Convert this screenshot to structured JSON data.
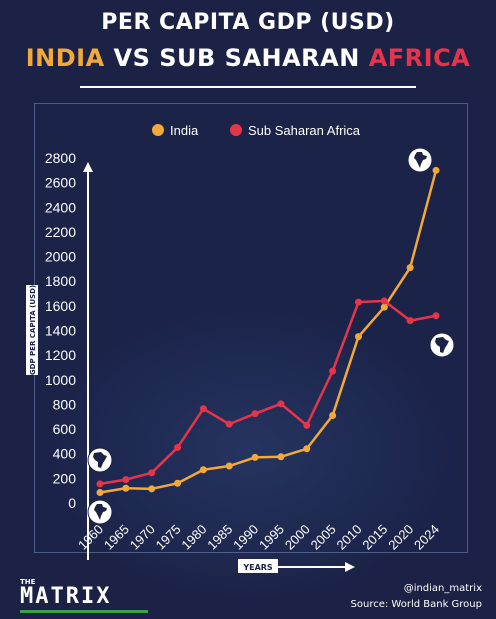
{
  "header": {
    "title_line1": "PER CAPITA GDP (USD)",
    "title_india": "INDIA",
    "title_vs": " VS SUB SAHARAN ",
    "title_africa": "AFRICA"
  },
  "footer": {
    "logo_the": "THE",
    "logo_name": "MATRIX",
    "handle": "@indian_matrix",
    "source": "Source: World Bank Group"
  },
  "colors": {
    "india": "#f3a93a",
    "africa": "#e8344a",
    "background": "#1b2246",
    "axis": "#ffffff"
  },
  "icons": [
    "india-map-icon",
    "africa-map-icon"
  ],
  "chart_data": {
    "type": "line",
    "title": "PER CAPITA GDP (USD)",
    "xlabel": "YEARS",
    "ylabel": "GDP PER CAPITA (USD)",
    "x": [
      "1960",
      "1965",
      "1970",
      "1975",
      "1980",
      "1985",
      "1990",
      "1995",
      "2000",
      "2005",
      "2010",
      "2015",
      "2020",
      "2024"
    ],
    "yticks": [
      0,
      200,
      400,
      600,
      800,
      1000,
      1200,
      1400,
      1600,
      1800,
      2000,
      2200,
      2400,
      2600,
      2800
    ],
    "ylim": [
      0,
      2800
    ],
    "legend_position": "top",
    "grid": false,
    "series": [
      {
        "name": "India",
        "color": "#f3a93a",
        "values": [
          85,
          120,
          115,
          160,
          270,
          300,
          370,
          375,
          440,
          710,
          1350,
          1590,
          1910,
          2700
        ]
      },
      {
        "name": "Sub Saharan Africa",
        "color": "#e8344a",
        "values": [
          155,
          190,
          245,
          450,
          765,
          640,
          725,
          805,
          630,
          1070,
          1630,
          1640,
          1480,
          1520
        ]
      }
    ]
  }
}
